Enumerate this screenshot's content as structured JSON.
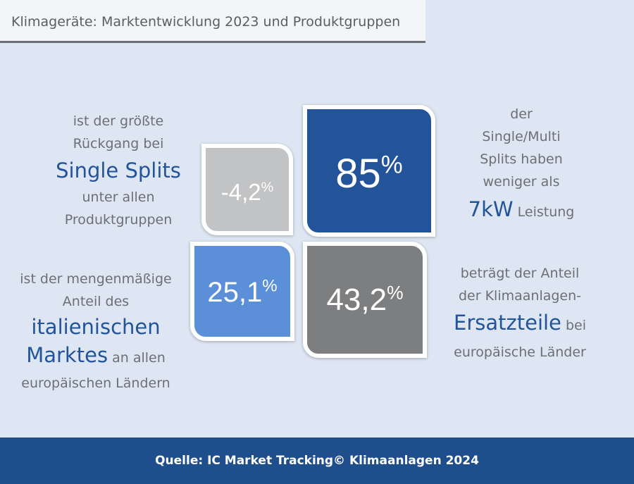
{
  "header": {
    "title": "Klimageräte: Marktentwicklung 2023 und Produktgruppen"
  },
  "tiles": [
    {
      "value": "-4,2",
      "unit": "%",
      "color": "#c2c3c5"
    },
    {
      "value": "85",
      "unit": "%",
      "color": "#23549a"
    },
    {
      "value": "25,1",
      "unit": "%",
      "color": "#5b8fd7"
    },
    {
      "value": "43,2",
      "unit": "%",
      "color": "#7d7e80"
    }
  ],
  "text_blocks": {
    "top_left": {
      "line1": "ist der größte",
      "line2": "Rückgang bei",
      "highlight": "Single Splits",
      "line4": "unter allen",
      "line5": "Produktgruppen"
    },
    "top_right": {
      "line1": "der",
      "line2": "Single/Multi",
      "line3": "Splits haben",
      "line4": "weniger als",
      "highlight": "7kW",
      "line5_rest": "Leistung"
    },
    "bottom_left": {
      "line1": "ist der mengenmäßige",
      "line2": "Anteil des",
      "highlight1": "italienischen",
      "highlight2": "Marktes",
      "line4_rest": "an allen",
      "line5": "europäischen Ländern"
    },
    "bottom_right": {
      "line1": "beträgt der Anteil",
      "line2": "der Klimaanlagen-",
      "highlight": "Ersatzteile",
      "line3_rest": "bei",
      "line4": "europäische Länder"
    }
  },
  "footer": {
    "source": "Quelle: IC Market Tracking© Klimaanlagen 2024"
  },
  "colors": {
    "accent": "#23549a",
    "footer": "#1e4f8c",
    "background": "#dde6f2",
    "text": "#6c7075"
  }
}
